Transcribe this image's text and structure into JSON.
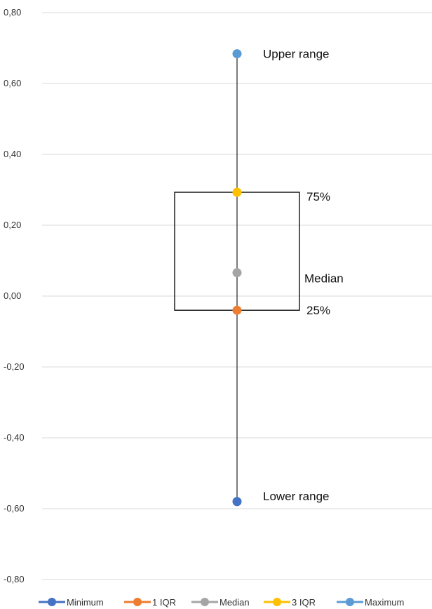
{
  "chart_data": {
    "type": "scatter",
    "ylim": [
      -0.8,
      0.8
    ],
    "y_ticks": [
      "0,80",
      "0,60",
      "0,40",
      "0,20",
      "0,00",
      "-0,20",
      "-0,40",
      "-0,60",
      "-0,80"
    ],
    "y_tick_values": [
      0.8,
      0.6,
      0.4,
      0.2,
      0.0,
      -0.2,
      -0.4,
      -0.6,
      -0.8
    ],
    "grid": true,
    "legend_position": "bottom",
    "series": [
      {
        "name": "Minimum",
        "value": -0.58,
        "color": "#4472C4"
      },
      {
        "name": "1 IQR",
        "value": -0.04,
        "color": "#ED7D31"
      },
      {
        "name": "Median",
        "value": 0.066,
        "color": "#A5A5A5"
      },
      {
        "name": "3 IQR",
        "value": 0.293,
        "color": "#FFC000"
      },
      {
        "name": "Maximum",
        "value": 0.684,
        "color": "#5B9BD5"
      }
    ],
    "box": {
      "q1": -0.04,
      "q3": 0.293
    },
    "annotations": {
      "upper": "Upper range",
      "q3": "75%",
      "median": "Median",
      "q1": "25%",
      "lower": "Lower range"
    }
  }
}
